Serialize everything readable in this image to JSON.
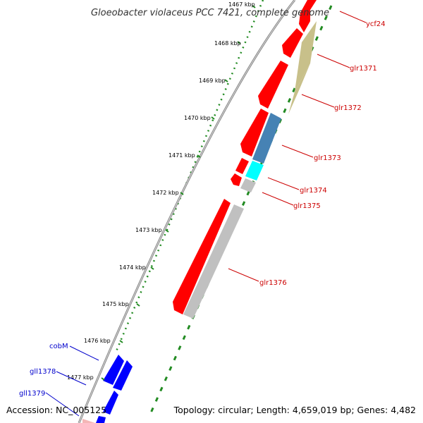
{
  "title": "Gloeobacter violaceus PCC 7421, complete genome",
  "footer": {
    "accession": "Accession: NC_005125",
    "summary": "Topology: circular; Length: 4,659,019 bp; Genes: 4,482"
  },
  "ticks": [
    "1467 kbp",
    "1468 kbp",
    "1469 kbp",
    "1470 kbp",
    "1471 kbp",
    "1472 kbp",
    "1473 kbp",
    "1474 kbp",
    "1475 kbp",
    "1476 kbp",
    "1477 kbp"
  ],
  "genes_forward": [
    "ycf24",
    "glr1371",
    "glr1372",
    "glr1373",
    "glr1374",
    "glr1375",
    "glr1376"
  ],
  "genes_reverse": [
    "cobM",
    "gll1378",
    "gll1379"
  ],
  "colors": {
    "forward": "#ff0000",
    "reverse": "#0000ff",
    "forward_label": "#cc0000",
    "reverse_label": "#0000cc",
    "backbone": "#888888",
    "gc_ruler": "#228B22",
    "cog_olive": "#c8c08a",
    "cog_steelblue": "#4682b4",
    "cog_cyan": "#00ffff",
    "cog_gray": "#c0c0c0"
  }
}
